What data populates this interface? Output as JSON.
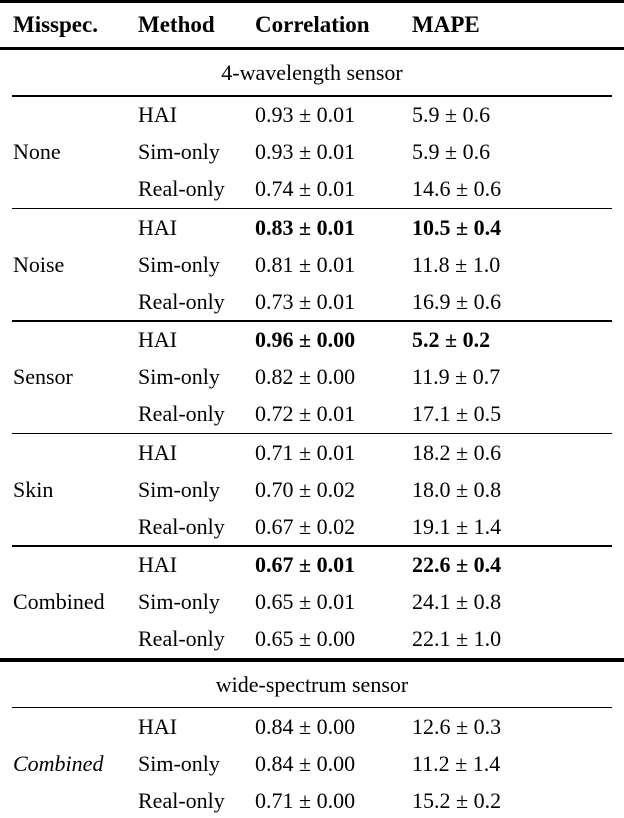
{
  "table": {
    "headers": {
      "misspec": "Misspec.",
      "method": "Method",
      "correlation": "Correlation",
      "mape": "MAPE"
    },
    "sections": [
      {
        "title": "4-wavelength sensor",
        "groups": [
          {
            "misspec": "None",
            "rows": [
              {
                "method": "HAI",
                "correlation": "0.93 ± 0.01",
                "mape": "5.9 ± 0.6",
                "bold": false
              },
              {
                "method": "Sim-only",
                "correlation": "0.93 ± 0.01",
                "mape": "5.9 ± 0.6",
                "bold": false
              },
              {
                "method": "Real-only",
                "correlation": "0.74 ± 0.01",
                "mape": "14.6 ± 0.6",
                "bold": false
              }
            ]
          },
          {
            "misspec": "Noise",
            "rows": [
              {
                "method": "HAI",
                "correlation": "0.83 ± 0.01",
                "mape": "10.5 ± 0.4",
                "bold": true
              },
              {
                "method": "Sim-only",
                "correlation": "0.81 ± 0.01",
                "mape": "11.8 ± 1.0",
                "bold": false
              },
              {
                "method": "Real-only",
                "correlation": "0.73 ± 0.01",
                "mape": "16.9 ± 0.6",
                "bold": false
              }
            ]
          },
          {
            "misspec": "Sensor",
            "rows": [
              {
                "method": "HAI",
                "correlation": "0.96 ± 0.00",
                "mape": "5.2 ± 0.2",
                "bold": true
              },
              {
                "method": "Sim-only",
                "correlation": "0.82 ± 0.00",
                "mape": "11.9 ± 0.7",
                "bold": false
              },
              {
                "method": "Real-only",
                "correlation": "0.72 ± 0.01",
                "mape": "17.1 ± 0.5",
                "bold": false
              }
            ]
          },
          {
            "misspec": "Skin",
            "rows": [
              {
                "method": "HAI",
                "correlation": "0.71 ± 0.01",
                "mape": "18.2 ± 0.6",
                "bold": false
              },
              {
                "method": "Sim-only",
                "correlation": "0.70 ± 0.02",
                "mape": "18.0 ± 0.8",
                "bold": false
              },
              {
                "method": "Real-only",
                "correlation": "0.67 ± 0.02",
                "mape": "19.1 ± 1.4",
                "bold": false
              }
            ]
          },
          {
            "misspec": "Combined",
            "rows": [
              {
                "method": "HAI",
                "correlation": "0.67 ± 0.01",
                "mape": "22.6 ± 0.4",
                "bold": true
              },
              {
                "method": "Sim-only",
                "correlation": "0.65 ± 0.01",
                "mape": "24.1 ± 0.8",
                "bold": false
              },
              {
                "method": "Real-only",
                "correlation": "0.65 ± 0.00",
                "mape": "22.1 ± 1.0",
                "bold": false
              }
            ]
          }
        ]
      },
      {
        "title": "wide-spectrum sensor",
        "groups": [
          {
            "misspec": "Combined",
            "misspec_italic": true,
            "rows": [
              {
                "method": "HAI",
                "correlation": "0.84 ± 0.00",
                "mape": "12.6 ± 0.3",
                "bold": false
              },
              {
                "method": "Sim-only",
                "correlation": "0.84 ± 0.00",
                "mape": "11.2 ± 1.4",
                "bold": false
              },
              {
                "method": "Real-only",
                "correlation": "0.71 ± 0.00",
                "mape": "15.2 ± 0.2",
                "bold": false
              }
            ]
          }
        ]
      }
    ]
  }
}
